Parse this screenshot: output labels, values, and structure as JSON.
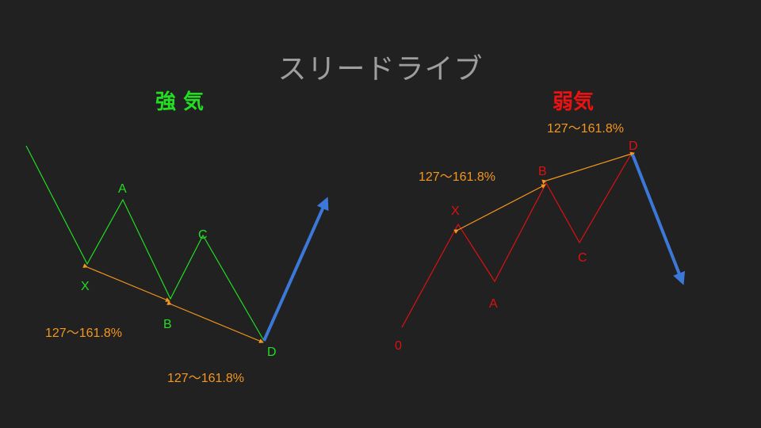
{
  "title": "スリードライブ",
  "bullish": {
    "heading": "強 気",
    "color": "#22dd22",
    "labels": {
      "X": "X",
      "A": "A",
      "B": "B",
      "C": "C",
      "D": "D"
    },
    "ratio_1": "127〜161.8%",
    "ratio_2": "127〜161.8%"
  },
  "bearish": {
    "heading": "弱気",
    "color": "#dd1111",
    "labels": {
      "O": "0",
      "X": "X",
      "A": "A",
      "B": "B",
      "C": "C",
      "D": "D"
    },
    "ratio_1": "127〜161.8%",
    "ratio_2": "127〜161.8%"
  },
  "colors": {
    "background": "#212121",
    "title": "#9e9e9e",
    "ratio": "#f5961e",
    "arrow": "#3c78d8"
  }
}
